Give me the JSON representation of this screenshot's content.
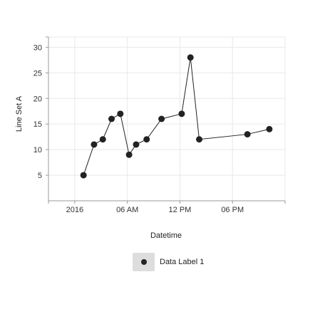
{
  "chart_data": {
    "type": "line",
    "ylabel": "Line Set A",
    "xlabel": "Datetime",
    "ylim": [
      0,
      32
    ],
    "xlim": [
      -3,
      24
    ],
    "yticks": [
      5,
      10,
      15,
      20,
      25,
      30
    ],
    "xticks": [
      {
        "value": 0,
        "label": "2016"
      },
      {
        "value": 6,
        "label": "06 AM"
      },
      {
        "value": 12,
        "label": "12 PM"
      },
      {
        "value": 18,
        "label": "06 PM"
      }
    ],
    "grid": true,
    "legend_placement": "bottom",
    "colors": {
      "series": "#222222",
      "grid": "#e8e8e8",
      "axis": "#999999"
    },
    "series": [
      {
        "name": "Data Label 1",
        "x": [
          1,
          2.2,
          3.2,
          4.2,
          5.2,
          6.2,
          7,
          8.2,
          9.9,
          12.2,
          13.2,
          14.2,
          19.7,
          22.2
        ],
        "y": [
          5,
          11,
          12,
          16,
          17,
          9,
          11,
          12,
          16,
          17,
          28,
          12,
          13,
          14
        ]
      }
    ]
  }
}
